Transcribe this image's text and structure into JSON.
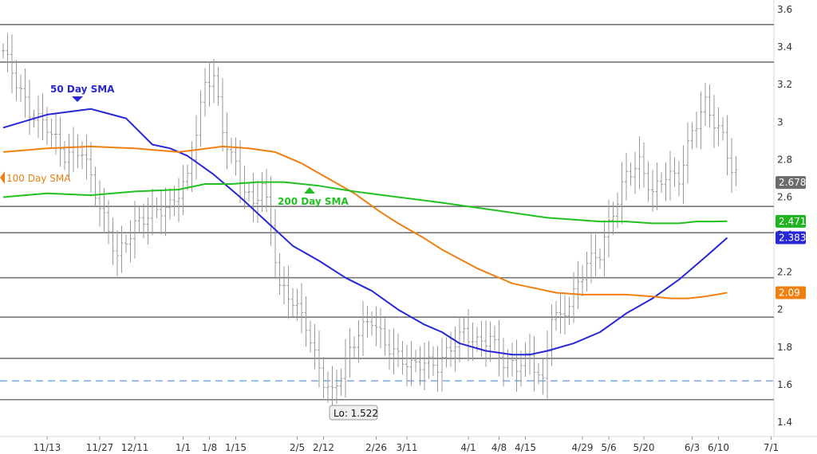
{
  "chart_data": {
    "type": "line",
    "title": "",
    "xlabel": "",
    "ylabel": "",
    "ylim": [
      1.3,
      3.65
    ],
    "y_ticks": [
      "1.4",
      "1.6",
      "1.8",
      "2",
      "2.2",
      "2.4",
      "2.6",
      "2.8",
      "3",
      "3.2",
      "3.4",
      "3.6"
    ],
    "x_ticks": [
      "11/13",
      "11/27",
      "12/11",
      "1/1",
      "1/8",
      "1/15",
      "2/5",
      "2/12",
      "2/26",
      "3/11",
      "4/1",
      "4/8",
      "4/15",
      "4/29",
      "5/6",
      "5/20",
      "6/3",
      "6/10",
      "7/1"
    ],
    "x_tick_bars": [
      10,
      22,
      30,
      41,
      47,
      53,
      67,
      73,
      85,
      92,
      106,
      113,
      119,
      132,
      138,
      146,
      157,
      163,
      175
    ],
    "bar_count": 168,
    "grid": false,
    "horizontal_levels": [
      3.52,
      3.32,
      2.55,
      2.41,
      2.17,
      1.96,
      1.74,
      1.52
    ],
    "dashed_level": 1.62,
    "colors": {
      "price": "#999999",
      "sma50": "#2727d6",
      "sma100": "#f07f12",
      "sma200": "#22c022",
      "level": "#777777",
      "dashed": "#7fb3ee"
    },
    "series": [
      {
        "name": "Price",
        "style": "ohlc",
        "x": [
          0,
          6,
          10,
          14,
          18,
          22,
          26,
          30,
          34,
          38,
          42,
          46,
          48,
          50,
          54,
          57,
          59,
          61,
          63,
          66,
          69,
          71,
          73,
          75,
          78,
          81,
          84,
          87,
          90,
          93,
          96,
          99,
          102,
          105,
          108,
          111,
          114,
          117,
          120,
          123,
          125,
          127,
          130,
          133,
          136,
          139,
          142,
          145,
          148,
          151,
          154,
          157,
          160,
          162,
          164,
          166,
          168
        ],
        "values": [
          3.38,
          3.05,
          2.98,
          2.82,
          2.85,
          2.55,
          2.28,
          2.45,
          2.52,
          2.55,
          2.7,
          3.2,
          3.25,
          2.95,
          2.7,
          2.55,
          2.68,
          2.45,
          2.12,
          2.05,
          1.92,
          1.75,
          1.62,
          1.55,
          1.72,
          1.88,
          1.95,
          1.82,
          1.75,
          1.7,
          1.72,
          1.7,
          1.8,
          1.88,
          1.82,
          1.85,
          1.72,
          1.7,
          1.75,
          1.6,
          1.98,
          1.95,
          2.08,
          2.25,
          2.3,
          2.52,
          2.72,
          2.78,
          2.62,
          2.72,
          2.7,
          2.95,
          3.1,
          3.0,
          2.92,
          2.75,
          2.678
        ]
      },
      {
        "name": "50 Day SMA",
        "x": [
          0,
          10,
          20,
          28,
          34,
          38,
          42,
          48,
          54,
          60,
          66,
          72,
          78,
          84,
          90,
          96,
          100,
          104,
          110,
          116,
          120,
          124,
          130,
          136,
          142,
          148,
          154,
          160,
          165
        ],
        "values": [
          2.97,
          3.04,
          3.07,
          3.02,
          2.88,
          2.86,
          2.82,
          2.72,
          2.6,
          2.47,
          2.34,
          2.26,
          2.17,
          2.1,
          2.0,
          1.92,
          1.88,
          1.82,
          1.78,
          1.76,
          1.76,
          1.78,
          1.82,
          1.88,
          1.98,
          2.06,
          2.16,
          2.28,
          2.383
        ]
      },
      {
        "name": "100 Day SMA",
        "x": [
          0,
          10,
          20,
          30,
          40,
          50,
          56,
          62,
          68,
          74,
          80,
          86,
          90,
          96,
          100,
          108,
          116,
          122,
          126,
          132,
          136,
          142,
          148,
          152,
          156,
          160,
          165
        ],
        "values": [
          2.84,
          2.86,
          2.87,
          2.86,
          2.84,
          2.87,
          2.86,
          2.84,
          2.78,
          2.7,
          2.62,
          2.52,
          2.46,
          2.38,
          2.32,
          2.22,
          2.14,
          2.11,
          2.09,
          2.08,
          2.08,
          2.08,
          2.07,
          2.06,
          2.06,
          2.07,
          2.09
        ]
      },
      {
        "name": "200 Day SMA",
        "x": [
          0,
          10,
          20,
          30,
          40,
          46,
          52,
          58,
          64,
          72,
          80,
          90,
          100,
          106,
          112,
          118,
          124,
          130,
          136,
          142,
          148,
          154,
          158,
          162,
          165
        ],
        "values": [
          2.6,
          2.62,
          2.61,
          2.63,
          2.64,
          2.67,
          2.67,
          2.68,
          2.68,
          2.66,
          2.63,
          2.6,
          2.57,
          2.55,
          2.53,
          2.51,
          2.49,
          2.48,
          2.47,
          2.47,
          2.46,
          2.46,
          2.47,
          2.47,
          2.471
        ]
      }
    ],
    "annotations": {
      "sma50_label": "50 Day SMA",
      "sma100_label": "100  Day SMA",
      "sma200_label": "200 Day SMA",
      "low_label": "Lo: 1.522"
    },
    "value_badges": [
      {
        "series": "Price",
        "text": "2.678",
        "value": 2.678,
        "color": "#6b6b6b"
      },
      {
        "series": "200 Day SMA",
        "text": "2.471",
        "value": 2.471,
        "color": "#22b322"
      },
      {
        "series": "50 Day SMA",
        "text": "2.383",
        "value": 2.383,
        "color": "#2727d6"
      },
      {
        "series": "100 Day SMA",
        "text": "2.09",
        "value": 2.09,
        "color": "#f07f12"
      }
    ]
  }
}
